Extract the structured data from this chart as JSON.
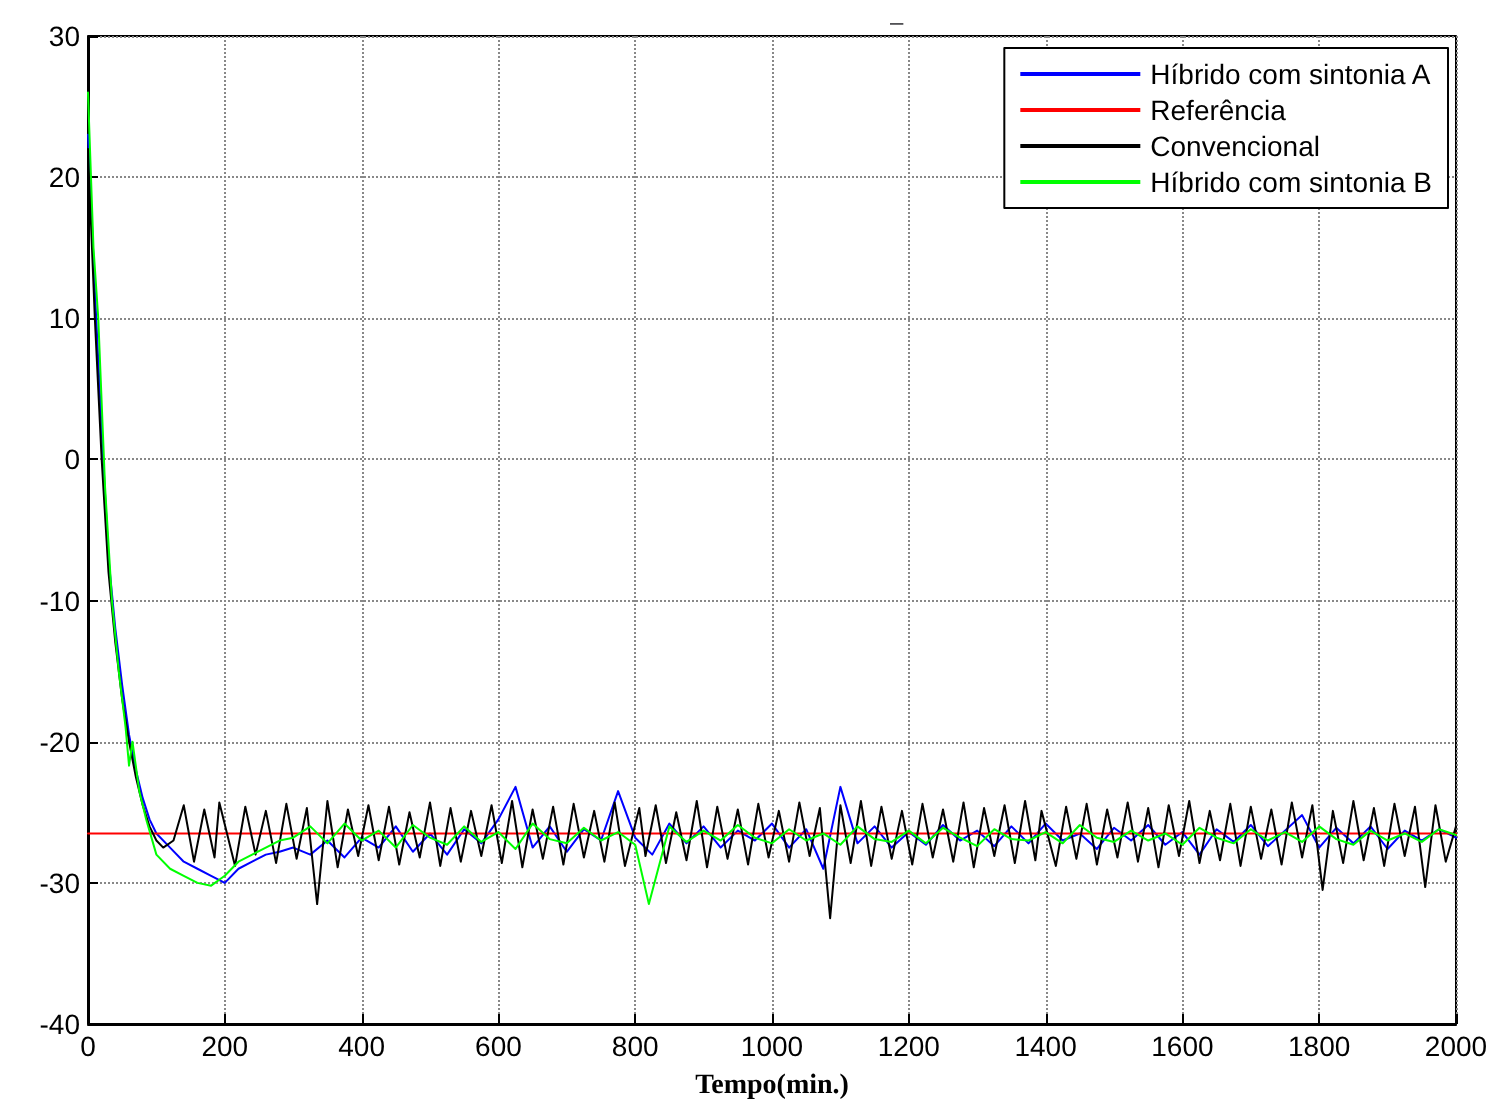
{
  "chart_data": {
    "type": "line",
    "title": "–",
    "xlabel": "Tempo(min.)",
    "xlim": [
      0,
      2000
    ],
    "xticks": [
      0,
      200,
      400,
      600,
      800,
      1000,
      1200,
      1400,
      1600,
      1800,
      2000
    ],
    "ylim": [
      -40,
      30
    ],
    "yticks": [
      -40,
      -30,
      -20,
      -10,
      0,
      10,
      20,
      30
    ],
    "grid": true,
    "legend": "top right",
    "marker": "none",
    "line_style": "solid",
    "series": [
      {
        "name": "Híbrido com sintonia A",
        "color": "#0000ff",
        "x": [
          0,
          10,
          20,
          30,
          40,
          50,
          60,
          70,
          80,
          90,
          100,
          120,
          140,
          160,
          180,
          200,
          220,
          240,
          260,
          280,
          300,
          325,
          350,
          375,
          400,
          425,
          450,
          475,
          500,
          525,
          550,
          575,
          600,
          625,
          650,
          675,
          700,
          725,
          750,
          775,
          800,
          825,
          850,
          875,
          900,
          925,
          950,
          975,
          1000,
          1025,
          1050,
          1075,
          1100,
          1125,
          1150,
          1175,
          1200,
          1225,
          1250,
          1275,
          1300,
          1325,
          1350,
          1375,
          1400,
          1425,
          1450,
          1475,
          1500,
          1525,
          1550,
          1575,
          1600,
          1625,
          1650,
          1675,
          1700,
          1725,
          1750,
          1775,
          1800,
          1825,
          1850,
          1875,
          1900,
          1925,
          1950,
          1975,
          2000
        ],
        "values": [
          23,
          12,
          2,
          -7,
          -12,
          -16,
          -19.5,
          -22,
          -24,
          -25.5,
          -26.5,
          -27.5,
          -28.5,
          -29,
          -29.5,
          -30,
          -29,
          -28.5,
          -28,
          -27.8,
          -27.5,
          -28,
          -27,
          -28.2,
          -26.8,
          -27.5,
          -26,
          -27.8,
          -26.5,
          -28,
          -26.2,
          -27.2,
          -25.5,
          -23.2,
          -27.5,
          -26,
          -27.8,
          -26.2,
          -27,
          -23.5,
          -26.8,
          -28,
          -25.8,
          -27.2,
          -26,
          -27.5,
          -26.3,
          -27,
          -25.8,
          -27.5,
          -26.2,
          -29,
          -23.2,
          -27.2,
          -26,
          -27.5,
          -26.4,
          -27.3,
          -25.9,
          -27,
          -26.3,
          -27.4,
          -26,
          -27.2,
          -25.8,
          -27,
          -26.5,
          -27.6,
          -26.1,
          -27,
          -25.9,
          -27.3,
          -26.4,
          -28,
          -26.2,
          -27.1,
          -25.9,
          -27.4,
          -26.3,
          -25.2,
          -27.5,
          -26.1,
          -27.2,
          -26,
          -27.6,
          -26.3,
          -27,
          -26.2,
          -26.8
        ]
      },
      {
        "name": "Referência",
        "color": "#ff0000",
        "x": [
          0,
          2000
        ],
        "values": [
          -26.5,
          -26.5
        ]
      },
      {
        "name": "Convencional",
        "color": "#000000",
        "x": [
          0,
          10,
          20,
          30,
          40,
          50,
          60,
          70,
          80,
          90,
          100,
          110,
          125,
          140,
          155,
          170,
          185,
          192,
          215,
          230,
          245,
          260,
          275,
          290,
          305,
          320,
          335,
          350,
          365,
          380,
          395,
          410,
          425,
          440,
          455,
          470,
          485,
          500,
          515,
          530,
          545,
          560,
          575,
          590,
          605,
          620,
          635,
          650,
          665,
          680,
          695,
          710,
          725,
          740,
          755,
          770,
          785,
          806,
          815,
          830,
          845,
          860,
          875,
          890,
          905,
          920,
          935,
          950,
          965,
          980,
          995,
          1010,
          1025,
          1040,
          1055,
          1070,
          1085,
          1100,
          1115,
          1130,
          1145,
          1160,
          1175,
          1190,
          1205,
          1220,
          1235,
          1250,
          1265,
          1280,
          1295,
          1310,
          1325,
          1340,
          1355,
          1370,
          1385,
          1394,
          1415,
          1430,
          1445,
          1460,
          1475,
          1490,
          1505,
          1520,
          1535,
          1550,
          1565,
          1580,
          1595,
          1610,
          1625,
          1640,
          1655,
          1670,
          1685,
          1700,
          1715,
          1730,
          1745,
          1760,
          1775,
          1790,
          1805,
          1820,
          1835,
          1850,
          1865,
          1880,
          1895,
          1910,
          1925,
          1940,
          1955,
          1970,
          1985,
          2000
        ],
        "values": [
          22,
          10,
          0,
          -8,
          -13,
          -17,
          -20,
          -22.5,
          -24.5,
          -26,
          -27,
          -27.5,
          -27,
          -24.5,
          -28.5,
          -24.8,
          -28.2,
          -24.3,
          -28.8,
          -24.6,
          -28,
          -24.9,
          -28.6,
          -24.4,
          -28.3,
          -24.7,
          -31.5,
          -24.2,
          -28.9,
          -24.8,
          -28.1,
          -24.5,
          -28.4,
          -24.6,
          -28.7,
          -25,
          -28.2,
          -24.3,
          -28.8,
          -24.7,
          -28.5,
          -24.9,
          -28.1,
          -24.5,
          -28.6,
          -24.2,
          -28.9,
          -24.8,
          -28.3,
          -24.6,
          -28.7,
          -24.4,
          -28.2,
          -24.9,
          -28.5,
          -24.3,
          -28.8,
          -24.7,
          -28.1,
          -24.5,
          -28.6,
          -25,
          -28.4,
          -24.2,
          -28.9,
          -24.6,
          -28.3,
          -24.8,
          -28.7,
          -24.4,
          -28.2,
          -24.9,
          -28.5,
          -24.3,
          -28.1,
          -24.7,
          -32.5,
          -24.5,
          -28.6,
          -24.2,
          -28.8,
          -24.6,
          -28.3,
          -24.9,
          -28.7,
          -24.4,
          -28.2,
          -24.8,
          -28.5,
          -24.3,
          -28.9,
          -24.7,
          -28.1,
          -24.5,
          -28.6,
          -24.2,
          -28.4,
          -24.9,
          -28.8,
          -24.6,
          -28.3,
          -24.4,
          -28.7,
          -24.8,
          -28.2,
          -24.3,
          -28.5,
          -24.7,
          -28.9,
          -24.5,
          -28.1,
          -24.2,
          -28.6,
          -24.9,
          -28.4,
          -24.4,
          -28.8,
          -24.6,
          -28.3,
          -24.8,
          -28.7,
          -24.3,
          -28.2,
          -24.5,
          -30.5,
          -24.9,
          -28.6,
          -24.2,
          -28.4,
          -24.7,
          -28.8,
          -24.4,
          -28.1,
          -24.6,
          -30.3,
          -24.5,
          -28.5,
          -26
        ]
      },
      {
        "name": "Híbrido com sintonia B",
        "color": "#00ff00",
        "x": [
          0,
          8,
          15,
          25,
          35,
          45,
          55,
          60,
          65,
          75,
          85,
          100,
          120,
          140,
          160,
          180,
          200,
          220,
          240,
          260,
          280,
          300,
          325,
          350,
          375,
          400,
          425,
          450,
          475,
          500,
          525,
          550,
          575,
          600,
          625,
          650,
          675,
          700,
          725,
          750,
          775,
          800,
          820,
          850,
          875,
          900,
          925,
          950,
          975,
          1000,
          1025,
          1050,
          1075,
          1100,
          1125,
          1150,
          1175,
          1200,
          1225,
          1250,
          1275,
          1300,
          1325,
          1350,
          1375,
          1400,
          1425,
          1450,
          1475,
          1500,
          1525,
          1550,
          1575,
          1600,
          1625,
          1650,
          1675,
          1700,
          1725,
          1750,
          1775,
          1800,
          1825,
          1850,
          1875,
          1900,
          1925,
          1950,
          1975,
          2000
        ],
        "values": [
          26,
          15,
          10,
          -2,
          -10,
          -15,
          -19,
          -21.7,
          -20,
          -23.5,
          -25.5,
          -28,
          -29,
          -29.5,
          -30,
          -30.2,
          -29.5,
          -28.5,
          -28,
          -27.5,
          -27,
          -26.8,
          -26,
          -27.2,
          -25.8,
          -27,
          -26.3,
          -27.5,
          -25.9,
          -26.8,
          -27.3,
          -26,
          -27.1,
          -26.4,
          -27.6,
          -25.8,
          -26.9,
          -27.2,
          -26.1,
          -27,
          -26.4,
          -27.3,
          -31.5,
          -26,
          -27.1,
          -26.3,
          -27,
          -25.9,
          -26.8,
          -27.2,
          -26.2,
          -27,
          -26.5,
          -27.3,
          -26,
          -26.9,
          -27.1,
          -26.3,
          -27.2,
          -26.1,
          -26.8,
          -27.4,
          -26.2,
          -26.9,
          -27,
          -26.4,
          -27.2,
          -25.9,
          -26.8,
          -27.1,
          -26.3,
          -27,
          -26.5,
          -27.3,
          -26.1,
          -26.8,
          -27.2,
          -26.2,
          -27,
          -26.4,
          -27.1,
          -26,
          -26.9,
          -27.3,
          -26.3,
          -27,
          -26.5,
          -27.1,
          -26.2,
          -26.6
        ]
      }
    ]
  }
}
